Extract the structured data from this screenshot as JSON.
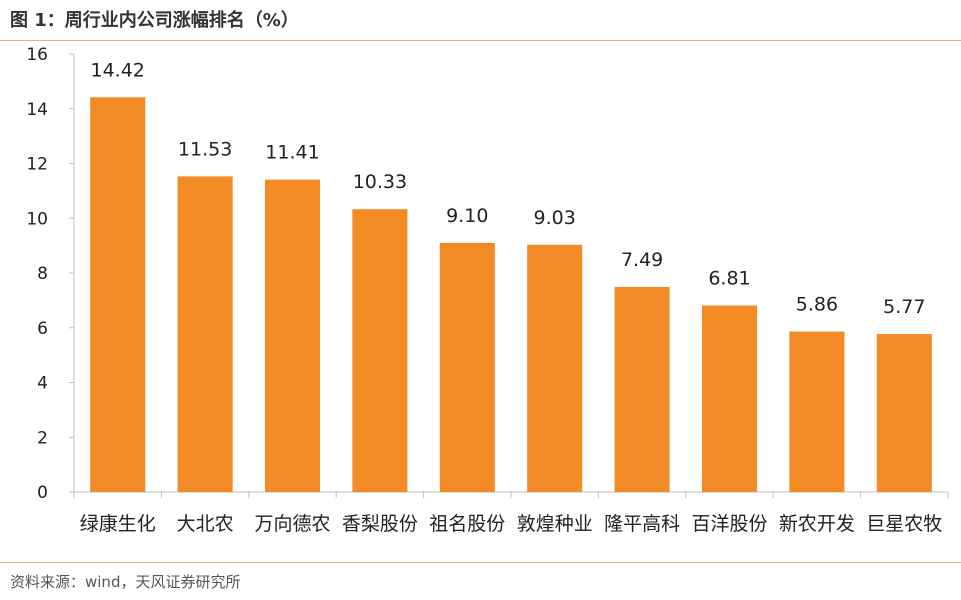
{
  "title": "图 1：周行业内公司涨幅排名（%）",
  "source": "资料来源：wind，天风证券研究所",
  "colors": {
    "bar": "#f28a26",
    "axis": "#bfbfbf",
    "text": "#222222",
    "rule": "#e8b766"
  },
  "chart_data": {
    "type": "bar",
    "categories": [
      "绿康生化",
      "大北农",
      "万向德农",
      "香梨股份",
      "祖名股份",
      "敦煌种业",
      "隆平高科",
      "百洋股份",
      "新农开发",
      "巨星农牧"
    ],
    "values": [
      14.42,
      11.53,
      11.41,
      10.33,
      9.1,
      9.03,
      7.49,
      6.81,
      5.86,
      5.77
    ],
    "value_labels": [
      "14.42",
      "11.53",
      "11.41",
      "10.33",
      "9.10",
      "9.03",
      "7.49",
      "6.81",
      "5.86",
      "5.77"
    ],
    "ylim": [
      0,
      16
    ],
    "yticks": [
      "0",
      "2",
      "4",
      "6",
      "8",
      "10",
      "12",
      "14",
      "16"
    ],
    "grid": false
  }
}
